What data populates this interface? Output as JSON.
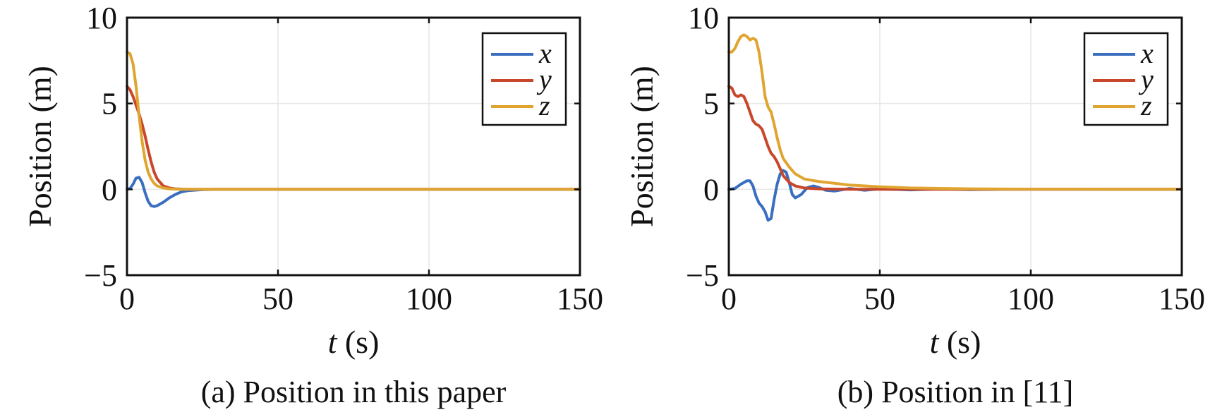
{
  "chart_data": [
    {
      "type": "line",
      "caption": "(a) Position in this paper",
      "xlabel_var": "t",
      "xlabel_unit": "(s)",
      "ylabel": "Position (m)",
      "xlim": [
        0,
        150
      ],
      "ylim": [
        -5,
        10
      ],
      "xticks": [
        0,
        50,
        100,
        150
      ],
      "yticks": [
        -5,
        0,
        5,
        10
      ],
      "ytick_labels": [
        "−5",
        "0",
        "5",
        "10"
      ],
      "grid": true,
      "legend_position": "top-right",
      "series": [
        {
          "name": "x",
          "color": "#3a6fbf",
          "points": [
            [
              0,
              0
            ],
            [
              1,
              0.05
            ],
            [
              2,
              0.3
            ],
            [
              3,
              0.65
            ],
            [
              4,
              0.7
            ],
            [
              5,
              0.4
            ],
            [
              6,
              -0.2
            ],
            [
              7,
              -0.7
            ],
            [
              8,
              -0.95
            ],
            [
              9,
              -1.0
            ],
            [
              10,
              -0.95
            ],
            [
              12,
              -0.75
            ],
            [
              14,
              -0.5
            ],
            [
              16,
              -0.3
            ],
            [
              18,
              -0.15
            ],
            [
              20,
              -0.08
            ],
            [
              25,
              -0.02
            ],
            [
              30,
              0
            ],
            [
              150,
              0
            ]
          ]
        },
        {
          "name": "y",
          "color": "#c8472a",
          "points": [
            [
              0,
              6
            ],
            [
              1,
              5.8
            ],
            [
              2,
              5.4
            ],
            [
              3,
              4.9
            ],
            [
              4,
              4.4
            ],
            [
              5,
              3.8
            ],
            [
              6,
              3.1
            ],
            [
              7,
              2.3
            ],
            [
              8,
              1.6
            ],
            [
              9,
              1.0
            ],
            [
              10,
              0.6
            ],
            [
              12,
              0.2
            ],
            [
              14,
              0.08
            ],
            [
              16,
              0.03
            ],
            [
              20,
              0
            ],
            [
              150,
              0
            ]
          ]
        },
        {
          "name": "z",
          "color": "#e0a531",
          "points": [
            [
              0,
              8
            ],
            [
              1,
              7.9
            ],
            [
              2,
              7.3
            ],
            [
              3,
              6.0
            ],
            [
              4,
              4.3
            ],
            [
              5,
              2.8
            ],
            [
              6,
              1.7
            ],
            [
              7,
              1.0
            ],
            [
              8,
              0.6
            ],
            [
              9,
              0.35
            ],
            [
              10,
              0.2
            ],
            [
              12,
              0.08
            ],
            [
              14,
              0.03
            ],
            [
              18,
              0
            ],
            [
              150,
              0
            ]
          ]
        }
      ]
    },
    {
      "type": "line",
      "caption": "(b) Position in [11]",
      "xlabel_var": "t",
      "xlabel_unit": "(s)",
      "ylabel": "Position (m)",
      "xlim": [
        0,
        150
      ],
      "ylim": [
        -5,
        10
      ],
      "xticks": [
        0,
        50,
        100,
        150
      ],
      "yticks": [
        -5,
        0,
        5,
        10
      ],
      "ytick_labels": [
        "−5",
        "0",
        "5",
        "10"
      ],
      "grid": true,
      "legend_position": "top-right",
      "series": [
        {
          "name": "x",
          "color": "#3a6fbf",
          "points": [
            [
              0,
              0
            ],
            [
              2,
              0.05
            ],
            [
              4,
              0.3
            ],
            [
              6,
              0.5
            ],
            [
              7,
              0.5
            ],
            [
              8,
              0.2
            ],
            [
              9,
              -0.4
            ],
            [
              10,
              -0.8
            ],
            [
              11,
              -1.0
            ],
            [
              12,
              -1.3
            ],
            [
              13,
              -1.8
            ],
            [
              14,
              -1.7
            ],
            [
              15,
              -0.6
            ],
            [
              16,
              0.3
            ],
            [
              17,
              0.9
            ],
            [
              18,
              1.1
            ],
            [
              19,
              1.0
            ],
            [
              20,
              0.4
            ],
            [
              21,
              -0.3
            ],
            [
              22,
              -0.5
            ],
            [
              24,
              -0.3
            ],
            [
              26,
              0.1
            ],
            [
              28,
              0.2
            ],
            [
              30,
              0.1
            ],
            [
              32,
              -0.05
            ],
            [
              35,
              -0.1
            ],
            [
              40,
              0.05
            ],
            [
              45,
              -0.05
            ],
            [
              50,
              0.03
            ],
            [
              60,
              -0.03
            ],
            [
              70,
              0.02
            ],
            [
              80,
              -0.02
            ],
            [
              90,
              0.01
            ],
            [
              100,
              0
            ],
            [
              150,
              0
            ]
          ]
        },
        {
          "name": "y",
          "color": "#c8472a",
          "points": [
            [
              0,
              6
            ],
            [
              1,
              5.9
            ],
            [
              2,
              5.5
            ],
            [
              3,
              5.4
            ],
            [
              4,
              5.5
            ],
            [
              5,
              5.4
            ],
            [
              6,
              5.0
            ],
            [
              7,
              4.5
            ],
            [
              8,
              4.0
            ],
            [
              9,
              3.8
            ],
            [
              10,
              3.7
            ],
            [
              11,
              3.5
            ],
            [
              12,
              3.0
            ],
            [
              13,
              2.5
            ],
            [
              14,
              2.1
            ],
            [
              15,
              1.9
            ],
            [
              16,
              1.6
            ],
            [
              17,
              1.2
            ],
            [
              18,
              0.8
            ],
            [
              20,
              0.4
            ],
            [
              22,
              0.2
            ],
            [
              25,
              0.08
            ],
            [
              30,
              0.02
            ],
            [
              40,
              0
            ],
            [
              150,
              0
            ]
          ]
        },
        {
          "name": "z",
          "color": "#e0a531",
          "points": [
            [
              0,
              8
            ],
            [
              1,
              8.0
            ],
            [
              2,
              8.2
            ],
            [
              3,
              8.6
            ],
            [
              4,
              8.9
            ],
            [
              5,
              9.0
            ],
            [
              6,
              8.9
            ],
            [
              7,
              8.7
            ],
            [
              8,
              8.8
            ],
            [
              9,
              8.7
            ],
            [
              10,
              8.0
            ],
            [
              11,
              6.8
            ],
            [
              12,
              5.4
            ],
            [
              13,
              4.8
            ],
            [
              14,
              4.5
            ],
            [
              15,
              3.8
            ],
            [
              16,
              3.0
            ],
            [
              17,
              2.3
            ],
            [
              18,
              1.8
            ],
            [
              20,
              1.3
            ],
            [
              22,
              0.9
            ],
            [
              25,
              0.6
            ],
            [
              30,
              0.45
            ],
            [
              35,
              0.35
            ],
            [
              40,
              0.25
            ],
            [
              50,
              0.15
            ],
            [
              60,
              0.08
            ],
            [
              80,
              0.03
            ],
            [
              100,
              0.01
            ],
            [
              150,
              0
            ]
          ]
        }
      ]
    }
  ]
}
